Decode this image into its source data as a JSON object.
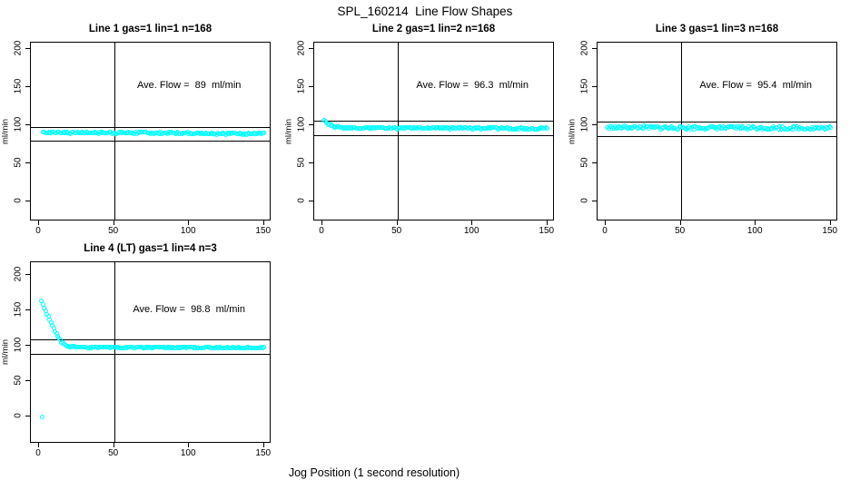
{
  "window": {
    "title": "SPL_160214  Line Flow Shapes"
  },
  "chart_data": {
    "type": "scatter",
    "title": "SPL_160214  Line Flow Shapes",
    "xlabel": "Jog Position (1 second resolution)",
    "point_color": "#00FFFF",
    "line_color": "#000000",
    "x_axis": {
      "ticks": [
        0,
        50,
        100,
        150
      ],
      "domain": [
        -5.5,
        155
      ]
    },
    "y_axis": {
      "label": "ml/min",
      "ticks": [
        0,
        50,
        100,
        150,
        200
      ],
      "domain_top_row": [
        -26,
        208
      ],
      "domain_bottom_row": [
        -38,
        218
      ]
    },
    "panels": [
      {
        "title": "Line 1 gas=1 lin=1 n=168",
        "line": 1,
        "gas": 1,
        "lin": 1,
        "n": 168,
        "ave_flow": 89,
        "ave_flow_label": "Ave. Flow =  89  ml/min",
        "annotation_xy": [
          100,
          152
        ],
        "hlines": [
          97.9,
          80.1
        ],
        "vline_x": 50,
        "row": 0,
        "col": 0,
        "series": {
          "x_start": 2.5,
          "x_end": 150,
          "n_points": 168,
          "jitter": 1.3,
          "anchors": [
            [
              2.5,
              90.5
            ],
            [
              150,
              89
            ]
          ]
        },
        "extra_points": []
      },
      {
        "title": "Line 2 gas=1 lin=2 n=168",
        "line": 2,
        "gas": 1,
        "lin": 2,
        "n": 168,
        "ave_flow": 96.3,
        "ave_flow_label": "Ave. Flow =  96.3  ml/min",
        "annotation_xy": [
          100,
          152
        ],
        "hlines": [
          105.9,
          86.7
        ],
        "vline_x": 50,
        "row": 0,
        "col": 1,
        "series": {
          "x_start": 1,
          "x_end": 150,
          "n_points": 168,
          "jitter": 1.1,
          "anchors": [
            [
              1,
              107
            ],
            [
              2.5,
              104
            ],
            [
              4,
              101.5
            ],
            [
              6,
              99.5
            ],
            [
              9,
              98
            ],
            [
              13,
              97
            ],
            [
              20,
              96.3
            ],
            [
              150,
              95.8
            ]
          ]
        },
        "extra_points": []
      },
      {
        "title": "Line 3 gas=1 lin=3 n=168",
        "line": 3,
        "gas": 1,
        "lin": 3,
        "n": 168,
        "ave_flow": 95.4,
        "ave_flow_label": "Ave. Flow =  95.4  ml/min",
        "annotation_xy": [
          100,
          152
        ],
        "hlines": [
          104.9,
          85.9
        ],
        "vline_x": 50,
        "row": 0,
        "col": 2,
        "series": {
          "x_start": 1,
          "x_end": 150,
          "n_points": 168,
          "jitter": 2.0,
          "anchors": [
            [
              1,
              97
            ],
            [
              150,
              96
            ]
          ]
        },
        "extra_points": []
      },
      {
        "title": "Line 4 (LT) gas=1 lin=4 n=3",
        "line": 4,
        "gas": 1,
        "lin": 4,
        "n": 3,
        "ave_flow": 98.8,
        "ave_flow_label": "Ave. Flow =  98.8  ml/min",
        "annotation_xy": [
          100,
          152
        ],
        "hlines": [
          108.7,
          88.9
        ],
        "vline_x": 50,
        "row": 1,
        "col": 0,
        "series": {
          "x_start": 1.5,
          "x_end": 150,
          "n_points": 165,
          "jitter": 0.8,
          "anchors": [
            [
              1.5,
              164
            ],
            [
              2.3,
              160
            ],
            [
              3.2,
              155
            ],
            [
              4.1,
              150
            ],
            [
              5,
              145.5
            ],
            [
              6,
              141
            ],
            [
              7,
              136.5
            ],
            [
              8,
              132
            ],
            [
              9,
              127.5
            ],
            [
              10,
              123.5
            ],
            [
              11,
              119.5
            ],
            [
              12,
              115.5
            ],
            [
              13,
              112
            ],
            [
              14,
              108.5
            ],
            [
              15,
              105.5
            ],
            [
              16,
              103.5
            ],
            [
              17,
              102
            ],
            [
              18,
              100.8
            ],
            [
              19,
              100
            ],
            [
              20,
              99.4
            ],
            [
              22,
              98.8
            ],
            [
              25,
              98.3
            ],
            [
              30,
              98
            ],
            [
              150,
              97.3
            ]
          ]
        },
        "extra_points": [
          [
            2,
            0
          ]
        ]
      }
    ]
  }
}
